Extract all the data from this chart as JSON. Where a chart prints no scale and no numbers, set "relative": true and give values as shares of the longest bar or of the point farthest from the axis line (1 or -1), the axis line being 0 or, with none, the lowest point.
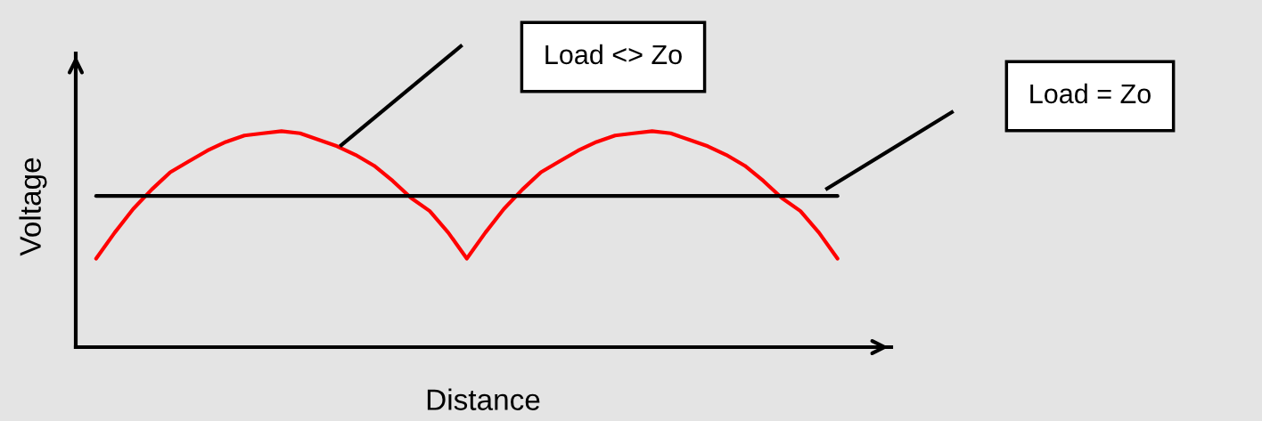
{
  "chart_data": {
    "type": "line",
    "relative": true,
    "xlabel": "Distance",
    "ylabel": "Voltage",
    "categories": [
      null,
      null,
      null,
      null,
      null,
      null,
      null,
      null,
      null,
      null,
      null,
      null,
      null,
      null,
      null,
      null,
      null,
      null,
      null,
      null,
      null,
      null,
      null,
      null,
      null,
      null,
      null,
      null,
      null,
      null,
      null,
      null,
      null,
      null,
      null,
      null,
      null,
      null,
      null,
      null,
      null
    ],
    "series": [
      {
        "color": "#ff0000",
        "values": [
          0.41,
          0.53,
          0.64,
          0.73,
          0.81,
          0.86,
          0.91,
          0.95,
          0.98,
          0.99,
          1.0,
          0.99,
          0.96,
          0.93,
          0.89,
          0.84,
          0.77,
          0.69,
          0.63,
          0.53,
          0.41,
          0.53,
          0.64,
          0.73,
          0.81,
          0.86,
          0.91,
          0.95,
          0.98,
          0.99,
          1.0,
          0.99,
          0.96,
          0.93,
          0.89,
          0.84,
          0.77,
          0.69,
          0.63,
          0.53,
          0.41
        ]
      },
      {
        "color": "#000000",
        "values": [
          0.7,
          0.7,
          0.7,
          0.7,
          0.7,
          0.7,
          0.7,
          0.7,
          0.7,
          0.7,
          0.7,
          0.7,
          0.7,
          0.7,
          0.7,
          0.7,
          0.7,
          0.7,
          0.7,
          0.7,
          0.7,
          0.7,
          0.7,
          0.7,
          0.7,
          0.7,
          0.7,
          0.7,
          0.7,
          0.7,
          0.7,
          0.7,
          0.7,
          0.7,
          0.7,
          0.7,
          0.7,
          0.7,
          0.7,
          0.7,
          0.7
        ]
      }
    ],
    "annotations": [
      "Load <> Zo",
      "Load = Zo"
    ]
  }
}
